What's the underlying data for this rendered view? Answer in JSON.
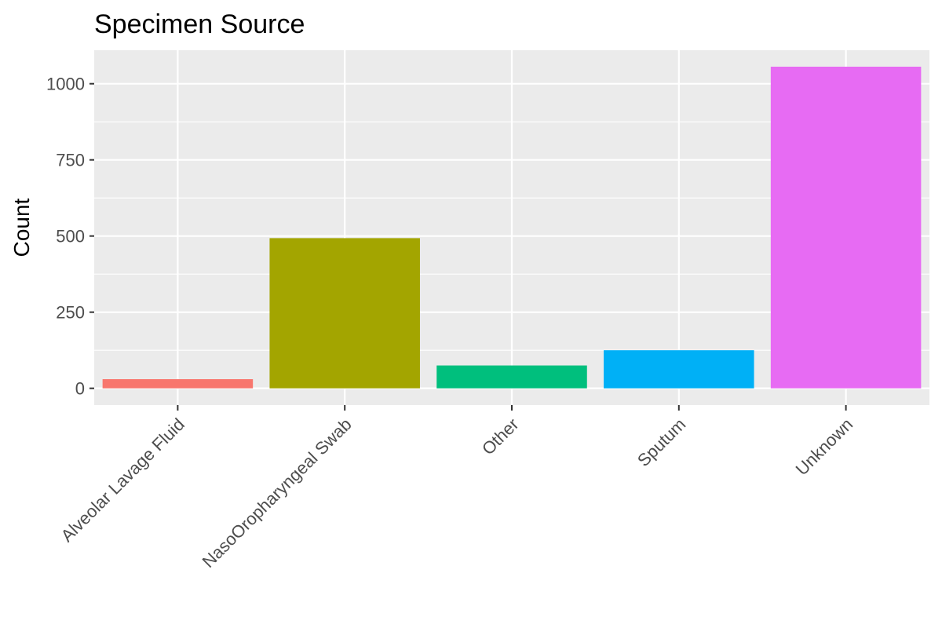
{
  "chart_data": {
    "type": "bar",
    "title": "Specimen Source",
    "xlabel": "",
    "ylabel": "Count",
    "categories": [
      "Alveolar Lavage Fluid",
      "NasoOropharyngeal Swab",
      "Other",
      "Sputum",
      "Unknown"
    ],
    "values": [
      30,
      493,
      75,
      125,
      1056
    ],
    "colors": [
      "#F8766D",
      "#A3A500",
      "#00BF7D",
      "#00B0F6",
      "#E76BF3"
    ],
    "ylim": [
      -55,
      1110
    ],
    "yticks": [
      0,
      250,
      500,
      750,
      1000
    ],
    "ytick_labels": [
      "0",
      "250",
      "500",
      "750",
      "1000"
    ],
    "grid": true,
    "legend": "none",
    "panel_background": "#EBEBEB"
  }
}
